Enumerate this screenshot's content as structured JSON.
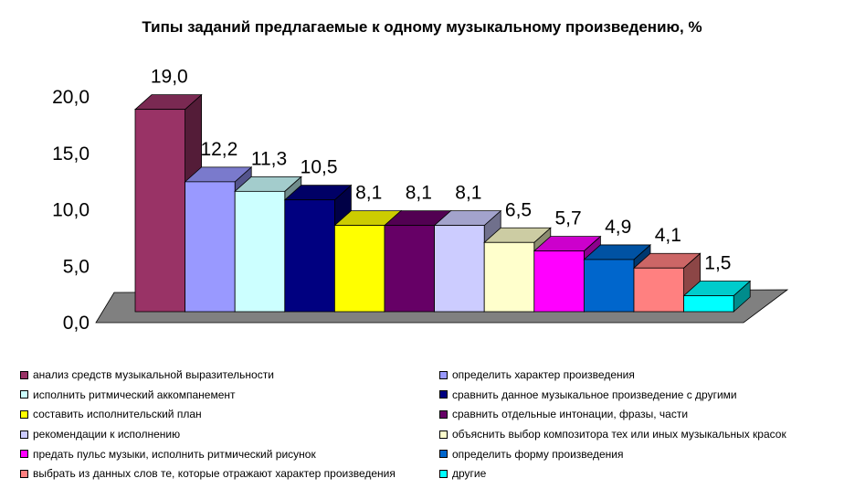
{
  "chart_data": {
    "type": "bar",
    "title": "Типы заданий предлагаемые к одному музыкальному произведению, %",
    "xlabel": "",
    "ylabel": "",
    "ylim": [
      0,
      20
    ],
    "yticks": [
      "0,0",
      "5,0",
      "10,0",
      "15,0",
      "20,0"
    ],
    "grid": false,
    "legend_position": "bottom",
    "categories": [
      "анализ средств музыкальной выразительности",
      "определить характер произведения",
      "исполнить ритмический аккомпанемент",
      "сравнить данное музыкальное произведение с другими",
      "составить исполнительский план",
      "сравнить отдельные интонации, фразы, части",
      "рекомендации к исполнению",
      "объяснить выбор композитора тех или иных музыкальных красок",
      "предать пульс музыки, исполнить ритмический рисунок",
      "определить форму произведения",
      "выбрать из данных слов те, которые отражают характер произведения",
      "другие"
    ],
    "values": [
      19.0,
      12.2,
      11.3,
      10.5,
      8.1,
      8.1,
      8.1,
      6.5,
      5.7,
      4.9,
      4.1,
      1.5
    ],
    "value_labels": [
      "19,0",
      "12,2",
      "11,3",
      "10,5",
      "8,1",
      "8,1",
      "8,1",
      "6,5",
      "5,7",
      "4,9",
      "4,1",
      "1,5"
    ],
    "colors": [
      "#993366",
      "#9999FF",
      "#CCFFFF",
      "#000080",
      "#FFFF00",
      "#660066",
      "#CCCCFF",
      "#FFFFCC",
      "#FF00FF",
      "#0066CC",
      "#FF8080",
      "#00FFFF"
    ]
  }
}
